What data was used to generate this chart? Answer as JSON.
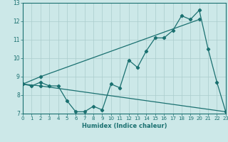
{
  "xlabel": "Humidex (Indice chaleur)",
  "xlim": [
    0,
    23
  ],
  "ylim": [
    7,
    13
  ],
  "yticks": [
    7,
    8,
    9,
    10,
    11,
    12,
    13
  ],
  "xticks": [
    0,
    1,
    2,
    3,
    4,
    5,
    6,
    7,
    8,
    9,
    10,
    11,
    12,
    13,
    14,
    15,
    16,
    17,
    18,
    19,
    20,
    21,
    22,
    23
  ],
  "bg_color": "#cce8e8",
  "line_color": "#1a7070",
  "grid_color": "#aacccc",
  "series1_x": [
    0,
    1,
    2,
    3,
    4,
    5,
    6,
    7,
    8,
    9,
    10,
    11,
    12,
    13,
    14,
    15,
    16,
    17,
    18,
    19,
    20,
    21,
    22,
    23
  ],
  "series1_y": [
    8.6,
    8.5,
    8.7,
    8.5,
    8.5,
    7.7,
    7.1,
    7.1,
    7.4,
    7.2,
    8.6,
    8.4,
    9.9,
    9.5,
    10.4,
    11.1,
    11.1,
    11.5,
    12.3,
    12.1,
    12.6,
    10.5,
    8.7,
    7.1
  ],
  "series2_x": [
    0,
    2,
    20
  ],
  "series2_y": [
    8.6,
    9.0,
    12.1
  ],
  "series3_x": [
    0,
    2,
    23
  ],
  "series3_y": [
    8.6,
    8.5,
    7.1
  ]
}
